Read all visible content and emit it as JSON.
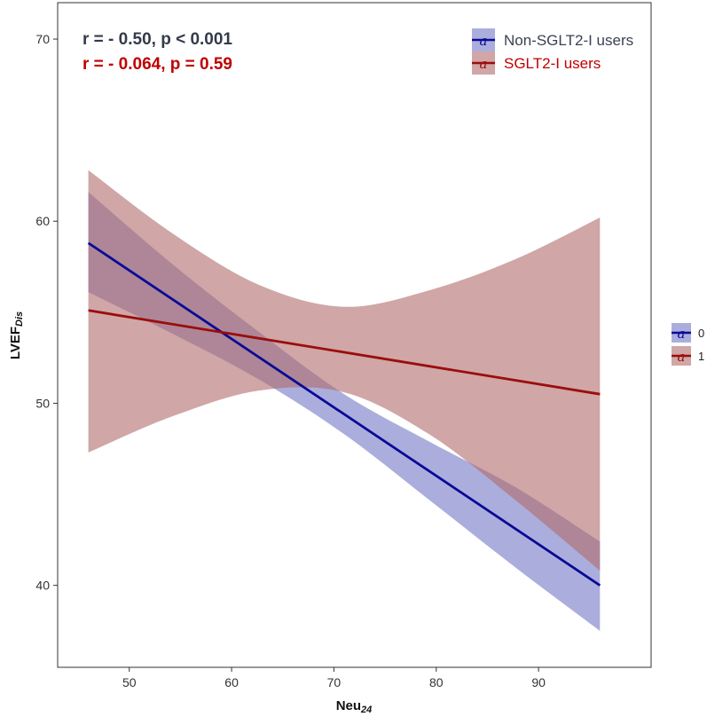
{
  "chart_data": {
    "type": "line",
    "title": "",
    "xlabel": "Neu",
    "xlabel_sub": "24",
    "ylabel": "LVEF",
    "ylabel_sub": "Dis",
    "xlim": [
      43,
      101
    ],
    "ylim": [
      35.5,
      72
    ],
    "x_ticks": [
      50,
      60,
      70,
      80,
      90
    ],
    "y_ticks": [
      40,
      50,
      60,
      70
    ],
    "grid": false,
    "colors": {
      "s0_line": "#0a0a96",
      "s0_band": "#7378c4",
      "s1_line": "#9b0d0d",
      "s1_band": "#b06a6a",
      "annot0": "#333b4a",
      "annot1": "#c00000",
      "legend0_text": "#3a4254",
      "legend1_text": "#c00000"
    },
    "series": [
      {
        "name": "Non-SGLT2-I users",
        "group": "0",
        "x": [
          46,
          54.3,
          62.7,
          71,
          79.3,
          87.7,
          96
        ],
        "fit": [
          58.8,
          55.7,
          52.6,
          49.4,
          46.3,
          43.2,
          40.0
        ],
        "lower": [
          56.1,
          53.8,
          51.3,
          48.3,
          44.7,
          41.0,
          37.5
        ],
        "upper": [
          61.6,
          57.6,
          53.9,
          50.5,
          47.9,
          45.4,
          42.4
        ]
      },
      {
        "name": "SGLT2-I users",
        "group": "1",
        "x": [
          46,
          54.3,
          62.7,
          71,
          79.3,
          87.7,
          96
        ],
        "fit": [
          55.1,
          54.3,
          53.6,
          52.8,
          52.0,
          51.3,
          50.5
        ],
        "lower": [
          47.3,
          49.3,
          50.7,
          50.6,
          48.3,
          44.7,
          40.8
        ],
        "upper": [
          62.8,
          59.3,
          56.5,
          55.3,
          56.2,
          57.9,
          60.2
        ]
      }
    ],
    "annotations": [
      "r = - 0.50, p < 0.001",
      "r = - 0.064, p = 0.59"
    ],
    "legend_inner": [
      "Non-SGLT2-I users",
      "SGLT2-I users"
    ],
    "legend_inner_position": "top-right",
    "legend_outer": [
      "0",
      "1"
    ],
    "legend_outer_position": "right",
    "legend_glyph": "a"
  }
}
